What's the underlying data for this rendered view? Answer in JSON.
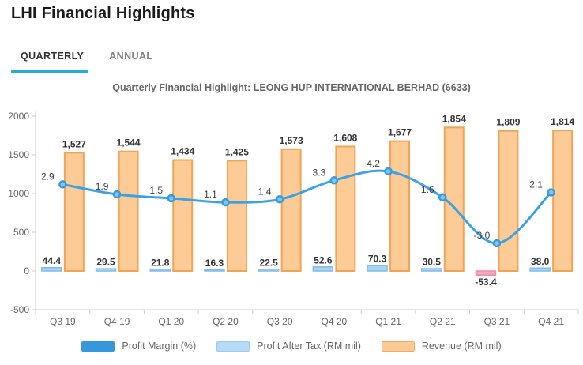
{
  "header": {
    "title": "LHI Financial Highlights"
  },
  "tabs": [
    {
      "label": "QUARTERLY",
      "active": true
    },
    {
      "label": "ANNUAL",
      "active": false
    }
  ],
  "chart_data": {
    "type": "combo",
    "title": "Quarterly Financial Highlight: LEONG HUP INTERNATIONAL BERHAD (6633)",
    "categories": [
      "Q3 19",
      "Q4 19",
      "Q1 20",
      "Q2 20",
      "Q3 20",
      "Q4 20",
      "Q1 21",
      "Q2 21",
      "Q3 21",
      "Q4 21"
    ],
    "series": [
      {
        "name": "Profit Margin (%)",
        "type": "line",
        "axis": "secondary",
        "color": "#3da2e4",
        "marker_fill": "#86c4ee",
        "marker_border": "#369bdf",
        "values": [
          2.9,
          1.9,
          1.5,
          1.1,
          1.4,
          3.3,
          4.2,
          1.6,
          -3.0,
          2.1
        ],
        "labels": [
          "2.9",
          "1.9",
          "1.5",
          "1.1",
          "1.4",
          "3.3",
          "4.2",
          "1.6",
          "-3.0",
          "2.1"
        ]
      },
      {
        "name": "Profit After Tax (RM mil)",
        "type": "bar",
        "fill": "#a9d5f2",
        "border": "#7fbce9",
        "negative_fill": "#f6a9be",
        "negative_border": "#f08aa6",
        "values": [
          44.4,
          29.5,
          21.8,
          16.3,
          22.5,
          52.6,
          70.3,
          30.5,
          -53.4,
          38.0
        ],
        "labels": [
          "44.4",
          "29.5",
          "21.8",
          "16.3",
          "22.5",
          "52.6",
          "70.3",
          "30.5",
          "-53.4",
          "38.0"
        ]
      },
      {
        "name": "Revenue (RM mil)",
        "type": "bar",
        "fill": "#fccb96",
        "border": "#f1a356",
        "values": [
          1527,
          1544,
          1434,
          1425,
          1573,
          1608,
          1677,
          1854,
          1809,
          1814
        ],
        "labels": [
          "1,527",
          "1,544",
          "1,434",
          "1,425",
          "1,573",
          "1,608",
          "1,677",
          "1,854",
          "1,809",
          "1,814"
        ]
      }
    ],
    "y_axis": {
      "ticks": [
        "2000",
        "1500",
        "1000",
        "500",
        "0",
        "-500"
      ],
      "min": -500,
      "max": 2000
    },
    "grid": "off",
    "legend_position": "bottom",
    "legend": [
      {
        "label": "Profit Margin (%)",
        "fill": "#3598db",
        "border": "#3598db"
      },
      {
        "label": "Profit After Tax (RM mil)",
        "fill": "#b5dbf6",
        "border": "#9ccbef"
      },
      {
        "label": "Revenue (RM mil)",
        "fill": "#fbcb95",
        "border": "#f2ac62"
      }
    ]
  }
}
